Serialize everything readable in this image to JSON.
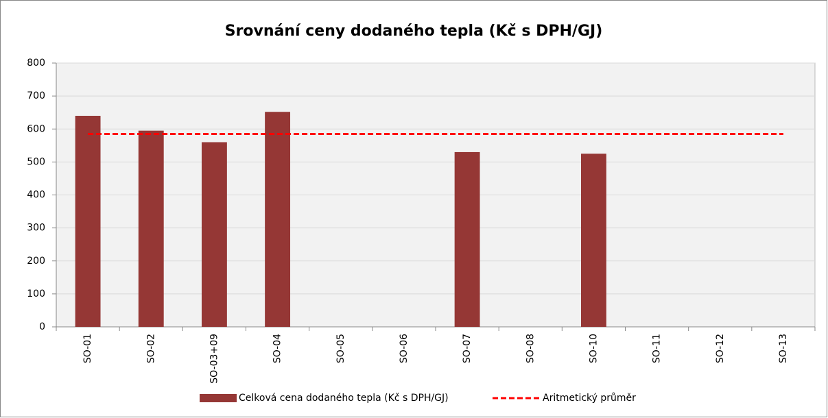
{
  "chart_data": {
    "type": "bar",
    "title": "Srovnání ceny dodaného tepla (Kč s DPH/GJ)",
    "categories": [
      "SO-01",
      "SO-02",
      "SO-03+09",
      "SO-04",
      "SO-05",
      "SO-06",
      "SO-07",
      "SO-08",
      "SO-10",
      "SO-11",
      "SO-12",
      "SO-13"
    ],
    "series": [
      {
        "name": "Celková cena dodaného tepla (Kč s DPH/GJ)",
        "type": "bar",
        "color": "#953735",
        "values": [
          640,
          595,
          560,
          652,
          null,
          null,
          530,
          null,
          525,
          null,
          null,
          null
        ]
      },
      {
        "name": "Aritmetický průměr",
        "type": "line",
        "line_style": "dashed",
        "color": "#ff0000",
        "values": [
          585,
          585,
          585,
          585,
          585,
          585,
          585,
          585,
          585,
          585,
          585,
          585
        ]
      }
    ],
    "ylim": [
      0,
      800
    ],
    "yticks": [
      0,
      100,
      200,
      300,
      400,
      500,
      600,
      700,
      800
    ],
    "grid": true,
    "legend": "bottom"
  }
}
